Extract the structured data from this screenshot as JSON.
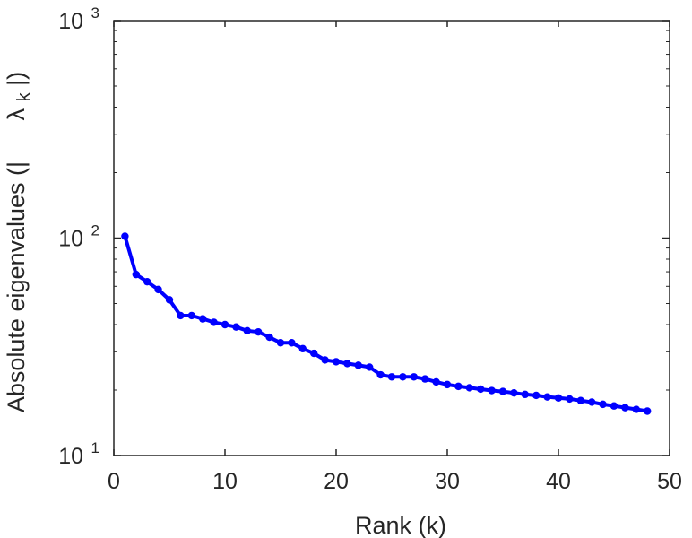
{
  "chart_data": {
    "type": "line",
    "title": "",
    "xlabel": "Rank (k)",
    "ylabel": "Absolute eigenvalues (|λ_k|)",
    "ylabel_parts": {
      "prefix": "Absolute eigenvalues (|",
      "symbol": "λ",
      "subscript": "k",
      "suffix": "|)"
    },
    "xlim": [
      0,
      50
    ],
    "ylim": [
      10,
      1000
    ],
    "yscale": "log",
    "xticks": [
      0,
      10,
      20,
      30,
      40,
      50
    ],
    "yticks": [
      {
        "value": 10,
        "base": "10",
        "exp": "1"
      },
      {
        "value": 100,
        "base": "10",
        "exp": "2"
      },
      {
        "value": 1000,
        "base": "10",
        "exp": "3"
      }
    ],
    "grid": false,
    "series": [
      {
        "color": "#0000ff",
        "marker": "circle",
        "x": [
          1,
          2,
          3,
          4,
          5,
          6,
          7,
          8,
          9,
          10,
          11,
          12,
          13,
          14,
          15,
          16,
          17,
          18,
          19,
          20,
          21,
          22,
          23,
          24,
          25,
          26,
          27,
          28,
          29,
          30,
          31,
          32,
          33,
          34,
          35,
          36,
          37,
          38,
          39,
          40,
          41,
          42,
          43,
          44,
          45,
          46,
          47,
          48
        ],
        "y": [
          102,
          68,
          63,
          58,
          52,
          44,
          44,
          42.5,
          41,
          40,
          39,
          37.5,
          37,
          35,
          33,
          33,
          31,
          29.5,
          27.5,
          27,
          26.5,
          26,
          25.5,
          23.5,
          23,
          23,
          23,
          22.5,
          21.8,
          21.2,
          20.8,
          20.5,
          20.2,
          19.9,
          19.7,
          19.4,
          19.1,
          18.9,
          18.6,
          18.4,
          18.2,
          17.9,
          17.6,
          17.2,
          16.9,
          16.6,
          16.3,
          16
        ]
      }
    ]
  }
}
